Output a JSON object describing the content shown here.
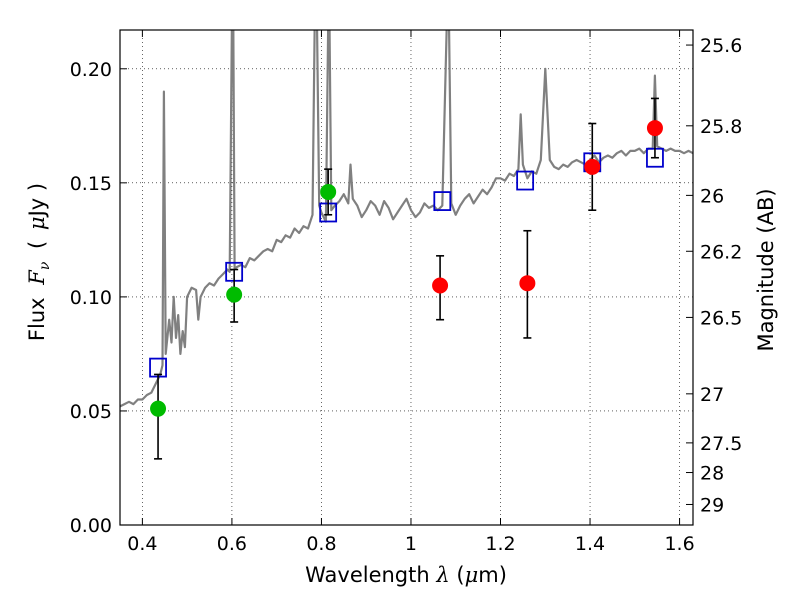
{
  "chart_data": {
    "type": "scatter",
    "xlabel": {
      "prefix": "Wavelength",
      "symbol": "λ",
      "unit_open": "(",
      "unit_mu": "μ",
      "unit_rest": "m)"
    },
    "ylabel": {
      "prefix": "Flux",
      "symbol": "F",
      "sub": "ν",
      "unit_open": "(",
      "unit_mu": "μ",
      "unit_rest": "Jy )"
    },
    "y2label": "Magnitude (AB)",
    "xlim": [
      0.35,
      1.63
    ],
    "ylim": [
      0,
      0.217
    ],
    "x_ticks": [
      0.4,
      0.6,
      0.8,
      1.0,
      1.2,
      1.4,
      1.6
    ],
    "x_tick_labels": [
      "0.4",
      "0.6",
      "0.8",
      "1",
      "1.2",
      "1.4",
      "1.6"
    ],
    "y_ticks": [
      0.0,
      0.05,
      0.1,
      0.15,
      0.2
    ],
    "y_tick_labels": [
      "0.00",
      "0.05",
      "0.10",
      "0.15",
      "0.20"
    ],
    "y2_ticks": [
      {
        "label": "25.6",
        "flux": 0.2104
      },
      {
        "label": "25.8",
        "flux": 0.175
      },
      {
        "label": "26",
        "flux": 0.1445
      },
      {
        "label": "26.2",
        "flux": 0.12
      },
      {
        "label": "26.5",
        "flux": 0.091
      },
      {
        "label": "27",
        "flux": 0.0575
      },
      {
        "label": "27.5",
        "flux": 0.036
      },
      {
        "label": "28",
        "flux": 0.023
      },
      {
        "label": "29",
        "flux": 0.009
      }
    ],
    "grid": true,
    "series": [
      {
        "kind": "line",
        "color": "#808080",
        "points": [
          [
            0.35,
            0.052
          ],
          [
            0.36,
            0.053
          ],
          [
            0.37,
            0.054
          ],
          [
            0.38,
            0.053
          ],
          [
            0.39,
            0.055
          ],
          [
            0.4,
            0.055
          ],
          [
            0.41,
            0.057
          ],
          [
            0.42,
            0.058
          ],
          [
            0.43,
            0.062
          ],
          [
            0.44,
            0.066
          ],
          [
            0.445,
            0.07
          ],
          [
            0.448,
            0.19
          ],
          [
            0.452,
            0.075
          ],
          [
            0.46,
            0.09
          ],
          [
            0.465,
            0.08
          ],
          [
            0.47,
            0.1
          ],
          [
            0.475,
            0.082
          ],
          [
            0.48,
            0.092
          ],
          [
            0.485,
            0.075
          ],
          [
            0.49,
            0.085
          ],
          [
            0.495,
            0.078
          ],
          [
            0.5,
            0.1
          ],
          [
            0.51,
            0.104
          ],
          [
            0.52,
            0.103
          ],
          [
            0.525,
            0.09
          ],
          [
            0.53,
            0.1
          ],
          [
            0.54,
            0.104
          ],
          [
            0.55,
            0.106
          ],
          [
            0.56,
            0.105
          ],
          [
            0.57,
            0.108
          ],
          [
            0.58,
            0.11
          ],
          [
            0.59,
            0.112
          ],
          [
            0.595,
            0.111
          ],
          [
            0.6,
            0.22
          ],
          [
            0.603,
            0.22
          ],
          [
            0.606,
            0.112
          ],
          [
            0.61,
            0.113
          ],
          [
            0.62,
            0.114
          ],
          [
            0.63,
            0.113
          ],
          [
            0.64,
            0.117
          ],
          [
            0.65,
            0.116
          ],
          [
            0.66,
            0.118
          ],
          [
            0.67,
            0.12
          ],
          [
            0.68,
            0.121
          ],
          [
            0.69,
            0.12
          ],
          [
            0.7,
            0.125
          ],
          [
            0.71,
            0.124
          ],
          [
            0.72,
            0.127
          ],
          [
            0.73,
            0.126
          ],
          [
            0.74,
            0.13
          ],
          [
            0.75,
            0.128
          ],
          [
            0.76,
            0.131
          ],
          [
            0.77,
            0.13
          ],
          [
            0.78,
            0.136
          ],
          [
            0.785,
            0.22
          ],
          [
            0.79,
            0.22
          ],
          [
            0.795,
            0.14
          ],
          [
            0.8,
            0.137
          ],
          [
            0.81,
            0.133
          ],
          [
            0.815,
            0.22
          ],
          [
            0.818,
            0.22
          ],
          [
            0.822,
            0.138
          ],
          [
            0.83,
            0.14
          ],
          [
            0.84,
            0.142
          ],
          [
            0.85,
            0.145
          ],
          [
            0.86,
            0.141
          ],
          [
            0.865,
            0.158
          ],
          [
            0.87,
            0.143
          ],
          [
            0.88,
            0.14
          ],
          [
            0.89,
            0.135
          ],
          [
            0.9,
            0.138
          ],
          [
            0.91,
            0.142
          ],
          [
            0.92,
            0.14
          ],
          [
            0.93,
            0.136
          ],
          [
            0.94,
            0.142
          ],
          [
            0.95,
            0.139
          ],
          [
            0.96,
            0.134
          ],
          [
            0.97,
            0.137
          ],
          [
            0.98,
            0.14
          ],
          [
            0.99,
            0.143
          ],
          [
            1.0,
            0.138
          ],
          [
            1.01,
            0.135
          ],
          [
            1.02,
            0.137
          ],
          [
            1.03,
            0.141
          ],
          [
            1.04,
            0.139
          ],
          [
            1.05,
            0.14
          ],
          [
            1.06,
            0.138
          ],
          [
            1.07,
            0.14
          ],
          [
            1.08,
            0.22
          ],
          [
            1.085,
            0.22
          ],
          [
            1.09,
            0.141
          ],
          [
            1.1,
            0.136
          ],
          [
            1.11,
            0.14
          ],
          [
            1.12,
            0.143
          ],
          [
            1.13,
            0.145
          ],
          [
            1.14,
            0.141
          ],
          [
            1.15,
            0.144
          ],
          [
            1.16,
            0.147
          ],
          [
            1.17,
            0.145
          ],
          [
            1.18,
            0.148
          ],
          [
            1.19,
            0.152
          ],
          [
            1.2,
            0.152
          ],
          [
            1.21,
            0.151
          ],
          [
            1.22,
            0.154
          ],
          [
            1.23,
            0.153
          ],
          [
            1.24,
            0.156
          ],
          [
            1.245,
            0.18
          ],
          [
            1.25,
            0.158
          ],
          [
            1.26,
            0.152
          ],
          [
            1.27,
            0.155
          ],
          [
            1.28,
            0.154
          ],
          [
            1.29,
            0.16
          ],
          [
            1.3,
            0.2
          ],
          [
            1.31,
            0.16
          ],
          [
            1.32,
            0.157
          ],
          [
            1.33,
            0.156
          ],
          [
            1.34,
            0.158
          ],
          [
            1.35,
            0.157
          ],
          [
            1.36,
            0.159
          ],
          [
            1.37,
            0.16
          ],
          [
            1.38,
            0.159
          ],
          [
            1.39,
            0.158
          ],
          [
            1.4,
            0.16
          ],
          [
            1.41,
            0.162
          ],
          [
            1.42,
            0.159
          ],
          [
            1.43,
            0.161
          ],
          [
            1.44,
            0.162
          ],
          [
            1.45,
            0.161
          ],
          [
            1.46,
            0.163
          ],
          [
            1.47,
            0.164
          ],
          [
            1.48,
            0.162
          ],
          [
            1.49,
            0.164
          ],
          [
            1.5,
            0.164
          ],
          [
            1.51,
            0.165
          ],
          [
            1.52,
            0.163
          ],
          [
            1.53,
            0.165
          ],
          [
            1.54,
            0.165
          ],
          [
            1.545,
            0.197
          ],
          [
            1.55,
            0.166
          ],
          [
            1.56,
            0.165
          ],
          [
            1.57,
            0.164
          ],
          [
            1.58,
            0.165
          ],
          [
            1.59,
            0.164
          ],
          [
            1.6,
            0.164
          ],
          [
            1.61,
            0.163
          ],
          [
            1.62,
            0.164
          ],
          [
            1.63,
            0.163
          ]
        ]
      },
      {
        "kind": "open-square",
        "color": "#0000cc",
        "points": [
          [
            0.435,
            0.069
          ],
          [
            0.605,
            0.111
          ],
          [
            0.815,
            0.137
          ],
          [
            1.07,
            0.142
          ],
          [
            1.255,
            0.151
          ],
          [
            1.405,
            0.159
          ],
          [
            1.545,
            0.161
          ]
        ]
      },
      {
        "kind": "filled-circle",
        "color": "#00bb00",
        "points": [
          [
            0.435,
            0.051,
            0.029,
            0.066
          ],
          [
            0.605,
            0.101,
            0.089,
            0.112
          ],
          [
            0.815,
            0.146,
            0.136,
            0.156
          ]
        ]
      },
      {
        "kind": "filled-circle",
        "color": "#ff0000",
        "points": [
          [
            1.065,
            0.105,
            0.09,
            0.118
          ],
          [
            1.26,
            0.106,
            0.082,
            0.129
          ],
          [
            1.405,
            0.157,
            0.138,
            0.176
          ],
          [
            1.545,
            0.174,
            0.161,
            0.187
          ]
        ]
      }
    ]
  }
}
